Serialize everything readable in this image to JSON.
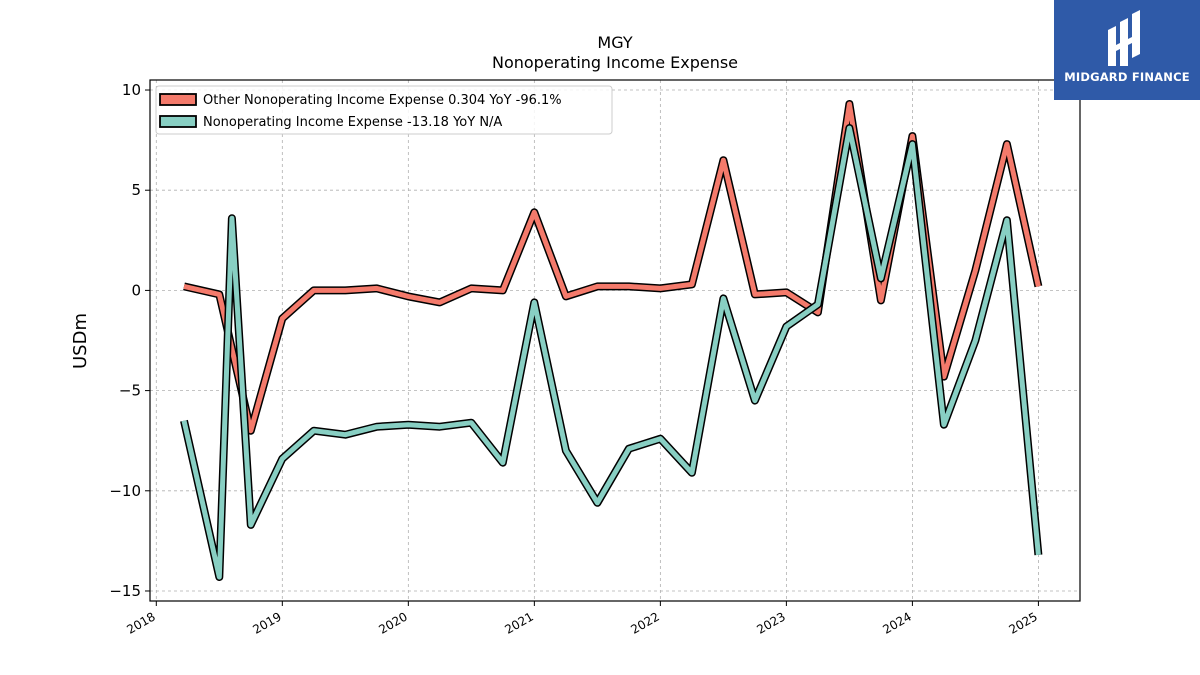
{
  "chart_data": {
    "type": "line",
    "title": "MGY",
    "subtitle": "Nonoperating Income Expense",
    "ylabel": "USDm",
    "xlabel": "",
    "ylim": [
      -15.5,
      10.5
    ],
    "xlim": [
      2017.95,
      2025.33
    ],
    "yticks": [
      10,
      5,
      0,
      -5,
      -10,
      -15
    ],
    "ytick_labels": [
      "10",
      "5",
      "0",
      "−5",
      "−10",
      "−15"
    ],
    "xticks": [
      2018,
      2019,
      2020,
      2021,
      2022,
      2023,
      2024,
      2025
    ],
    "xtick_labels": [
      "2018",
      "2019",
      "2020",
      "2021",
      "2022",
      "2023",
      "2024",
      "2025"
    ],
    "grid": true,
    "legend_position": "top-left",
    "series": [
      {
        "name": "Other Nonoperating Income Expense  0.304 YoY -96.1%",
        "color": "#f47a6b",
        "x": [
          2018.22,
          2018.5,
          2018.75,
          2019.0,
          2019.25,
          2019.5,
          2019.75,
          2020.0,
          2020.25,
          2020.5,
          2020.75,
          2021.0,
          2021.25,
          2021.5,
          2021.75,
          2022.0,
          2022.25,
          2022.5,
          2022.75,
          2023.0,
          2023.25,
          2023.5,
          2023.75,
          2024.0,
          2024.25,
          2024.5,
          2024.75,
          2025.0
        ],
        "y": [
          0.2,
          -0.2,
          -7.0,
          -1.4,
          0.0,
          0.0,
          0.1,
          -0.3,
          -0.6,
          0.1,
          0.0,
          3.9,
          -0.3,
          0.2,
          0.2,
          0.1,
          0.3,
          6.5,
          -0.2,
          -0.1,
          -1.1,
          9.3,
          -0.5,
          7.7,
          -4.3,
          1.0,
          7.3,
          0.2
        ]
      },
      {
        "name": "Nonoperating Income Expense  -13.18 YoY N/A",
        "color": "#88cfc3",
        "x": [
          2018.22,
          2018.5,
          2018.6,
          2018.75,
          2019.0,
          2019.25,
          2019.5,
          2019.75,
          2020.0,
          2020.25,
          2020.5,
          2020.75,
          2021.0,
          2021.25,
          2021.5,
          2021.75,
          2022.0,
          2022.25,
          2022.5,
          2022.75,
          2023.0,
          2023.25,
          2023.5,
          2023.75,
          2024.0,
          2024.25,
          2024.5,
          2024.75,
          2025.0
        ],
        "y": [
          -6.5,
          -14.3,
          3.6,
          -11.7,
          -8.4,
          -7.0,
          -7.2,
          -6.8,
          -6.7,
          -6.8,
          -6.6,
          -8.6,
          -0.6,
          -8.0,
          -10.6,
          -7.9,
          -7.4,
          -9.1,
          -0.4,
          -5.5,
          -1.8,
          -0.7,
          8.1,
          0.6,
          7.3,
          -6.7,
          -2.5,
          3.5,
          -13.2
        ]
      }
    ]
  },
  "logo": {
    "text": "MIDGARD FINANCE",
    "background": "#2f5aa8"
  }
}
